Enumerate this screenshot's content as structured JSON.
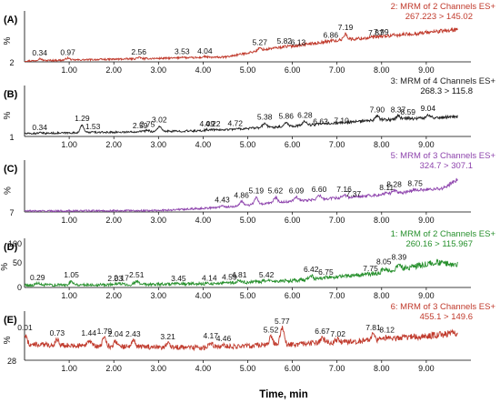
{
  "chart_data": [
    {
      "type": "line",
      "panel_label": "(A)",
      "color": "#c0392b",
      "channel_title": "2: MRM of 2 Channels ES+",
      "transition": "267.223 > 145.02",
      "y_axis_symbol": "%",
      "y_tick_label": "2",
      "x_range": [
        0,
        10
      ],
      "peaks": [
        {
          "x": 0.34,
          "label": "0.34",
          "h": 0.08
        },
        {
          "x": 0.97,
          "label": "0.97",
          "h": 0.09
        },
        {
          "x": 2.56,
          "label": "2.56",
          "h": 0.1
        },
        {
          "x": 3.53,
          "label": "3.53",
          "h": 0.11
        },
        {
          "x": 4.04,
          "label": "4.04",
          "h": 0.12
        },
        {
          "x": 5.27,
          "label": "5.27",
          "h": 0.3
        },
        {
          "x": 5.82,
          "label": "5.82",
          "h": 0.33
        },
        {
          "x": 6.13,
          "label": "6.13",
          "h": 0.3
        },
        {
          "x": 6.86,
          "label": "6.86",
          "h": 0.45
        },
        {
          "x": 7.19,
          "label": "7.19",
          "h": 0.62
        },
        {
          "x": 7.87,
          "label": "7.87",
          "h": 0.5
        },
        {
          "x": 7.99,
          "label": "7.99",
          "h": 0.52
        }
      ],
      "trend": [
        [
          0,
          0.02
        ],
        [
          4.5,
          0.1
        ],
        [
          5.5,
          0.28
        ],
        [
          7,
          0.45
        ],
        [
          9,
          0.62
        ],
        [
          9.7,
          0.68
        ]
      ]
    },
    {
      "type": "line",
      "panel_label": "(B)",
      "color": "#222222",
      "channel_title": "3: MRM of 4 Channels ES+",
      "transition": "268.3 > 115.8",
      "y_axis_symbol": "%",
      "y_tick_label": "1",
      "x_range": [
        0,
        10
      ],
      "peaks": [
        {
          "x": 0.34,
          "label": "0.34",
          "h": 0.08
        },
        {
          "x": 1.29,
          "label": "1.29",
          "h": 0.27
        },
        {
          "x": 1.53,
          "label": "1.53",
          "h": 0.1
        },
        {
          "x": 2.59,
          "label": "2.59",
          "h": 0.12
        },
        {
          "x": 2.75,
          "label": "2.75",
          "h": 0.14
        },
        {
          "x": 3.02,
          "label": "3.02",
          "h": 0.24
        },
        {
          "x": 4.09,
          "label": "4.09",
          "h": 0.15
        },
        {
          "x": 4.22,
          "label": "4.22",
          "h": 0.15
        },
        {
          "x": 4.72,
          "label": "4.72",
          "h": 0.16
        },
        {
          "x": 5.38,
          "label": "5.38",
          "h": 0.3
        },
        {
          "x": 5.86,
          "label": "5.86",
          "h": 0.32
        },
        {
          "x": 6.28,
          "label": "6.28",
          "h": 0.34
        },
        {
          "x": 6.63,
          "label": "6.63",
          "h": 0.2
        },
        {
          "x": 7.1,
          "label": "7.10",
          "h": 0.22
        },
        {
          "x": 7.9,
          "label": "7.90",
          "h": 0.45
        },
        {
          "x": 8.37,
          "label": "8.37",
          "h": 0.45
        },
        {
          "x": 8.59,
          "label": "8.59",
          "h": 0.4
        },
        {
          "x": 9.04,
          "label": "9.04",
          "h": 0.48
        }
      ],
      "trend": [
        [
          0,
          0.06
        ],
        [
          4,
          0.12
        ],
        [
          6,
          0.22
        ],
        [
          8,
          0.35
        ],
        [
          9.7,
          0.42
        ]
      ]
    },
    {
      "type": "line",
      "panel_label": "(C)",
      "color": "#8e44ad",
      "channel_title": "5: MRM of 3 Channels ES+",
      "transition": "324.7 > 307.1",
      "y_axis_symbol": "%",
      "y_tick_label": "7",
      "x_range": [
        0,
        10
      ],
      "peaks": [
        {
          "x": 4.43,
          "label": "4.43",
          "h": 0.14
        },
        {
          "x": 4.86,
          "label": "4.86",
          "h": 0.24
        },
        {
          "x": 5.19,
          "label": "5.19",
          "h": 0.33
        },
        {
          "x": 5.62,
          "label": "5.62",
          "h": 0.33
        },
        {
          "x": 6.09,
          "label": "6.09",
          "h": 0.33
        },
        {
          "x": 6.6,
          "label": "6.60",
          "h": 0.36
        },
        {
          "x": 7.16,
          "label": "7.16",
          "h": 0.36
        },
        {
          "x": 7.37,
          "label": "7.37",
          "h": 0.26
        },
        {
          "x": 8.11,
          "label": "8.11",
          "h": 0.4
        },
        {
          "x": 8.28,
          "label": "8.28",
          "h": 0.46
        },
        {
          "x": 8.75,
          "label": "8.75",
          "h": 0.48
        }
      ],
      "trend": [
        [
          0,
          0.02
        ],
        [
          3,
          0.03
        ],
        [
          4.5,
          0.1
        ],
        [
          6,
          0.22
        ],
        [
          8,
          0.36
        ],
        [
          9.4,
          0.5
        ],
        [
          9.7,
          0.68
        ]
      ]
    },
    {
      "type": "line",
      "panel_label": "(D)",
      "color": "#27902d",
      "channel_title": "1: MRM of 2 Channels ES+",
      "transition": "260.16 > 115.967",
      "y_axis_symbol": "%",
      "y_tick_labels": [
        "100",
        "50",
        "0"
      ],
      "x_range": [
        0,
        10
      ],
      "peaks": [
        {
          "x": 0.29,
          "label": "0.29",
          "h": 0.1
        },
        {
          "x": 1.05,
          "label": "1.05",
          "h": 0.16
        },
        {
          "x": 2.03,
          "label": "2.03",
          "h": 0.08
        },
        {
          "x": 2.17,
          "label": "2.17",
          "h": 0.09
        },
        {
          "x": 2.51,
          "label": "2.51",
          "h": 0.16
        },
        {
          "x": 3.45,
          "label": "3.45",
          "h": 0.08
        },
        {
          "x": 4.14,
          "label": "4.14",
          "h": 0.09
        },
        {
          "x": 4.59,
          "label": "4.59",
          "h": 0.11
        },
        {
          "x": 4.81,
          "label": "4.81",
          "h": 0.16
        },
        {
          "x": 5.42,
          "label": "5.42",
          "h": 0.16
        },
        {
          "x": 6.42,
          "label": "6.42",
          "h": 0.28
        },
        {
          "x": 6.75,
          "label": "6.75",
          "h": 0.22
        },
        {
          "x": 7.75,
          "label": "7.75",
          "h": 0.3
        },
        {
          "x": 8.05,
          "label": "8.05",
          "h": 0.45
        },
        {
          "x": 8.39,
          "label": "8.39",
          "h": 0.55
        }
      ],
      "trend": [
        [
          0,
          0.05
        ],
        [
          4,
          0.08
        ],
        [
          6,
          0.15
        ],
        [
          8,
          0.32
        ],
        [
          9.2,
          0.55
        ],
        [
          9.7,
          0.5
        ]
      ]
    },
    {
      "type": "line",
      "panel_label": "(E)",
      "color": "#c0392b",
      "channel_title": "6: MRM of 3 Channels ES+",
      "transition": "455.1 > 149.6",
      "y_axis_symbol": "%",
      "y_tick_label": "28",
      "x_range": [
        0,
        10
      ],
      "x_ticks": [
        "1.00",
        "2.00",
        "3.00",
        "4.00",
        "5.00",
        "6.00",
        "7.00",
        "8.00",
        "9.00"
      ],
      "x_title": "Time, min",
      "peaks": [
        {
          "x": 0.01,
          "label": "0.01",
          "h": 0.6
        },
        {
          "x": 0.73,
          "label": "0.73",
          "h": 0.48
        },
        {
          "x": 1.44,
          "label": "1.44",
          "h": 0.48
        },
        {
          "x": 1.79,
          "label": "1.79",
          "h": 0.52
        },
        {
          "x": 2.04,
          "label": "2.04",
          "h": 0.46
        },
        {
          "x": 2.43,
          "label": "2.43",
          "h": 0.46
        },
        {
          "x": 3.21,
          "label": "3.21",
          "h": 0.4
        },
        {
          "x": 4.17,
          "label": "4.17",
          "h": 0.42
        },
        {
          "x": 4.46,
          "label": "4.46",
          "h": 0.36
        },
        {
          "x": 5.52,
          "label": "5.52",
          "h": 0.55
        },
        {
          "x": 5.77,
          "label": "5.77",
          "h": 0.8
        },
        {
          "x": 6.67,
          "label": "6.67",
          "h": 0.52
        },
        {
          "x": 7.02,
          "label": "7.02",
          "h": 0.46
        },
        {
          "x": 7.81,
          "label": "7.81",
          "h": 0.6
        },
        {
          "x": 8.12,
          "label": "8.12",
          "h": 0.55
        }
      ],
      "trend": [
        [
          0,
          0.35
        ],
        [
          2,
          0.3
        ],
        [
          4,
          0.28
        ],
        [
          6,
          0.35
        ],
        [
          8,
          0.45
        ],
        [
          9.7,
          0.6
        ]
      ]
    }
  ]
}
